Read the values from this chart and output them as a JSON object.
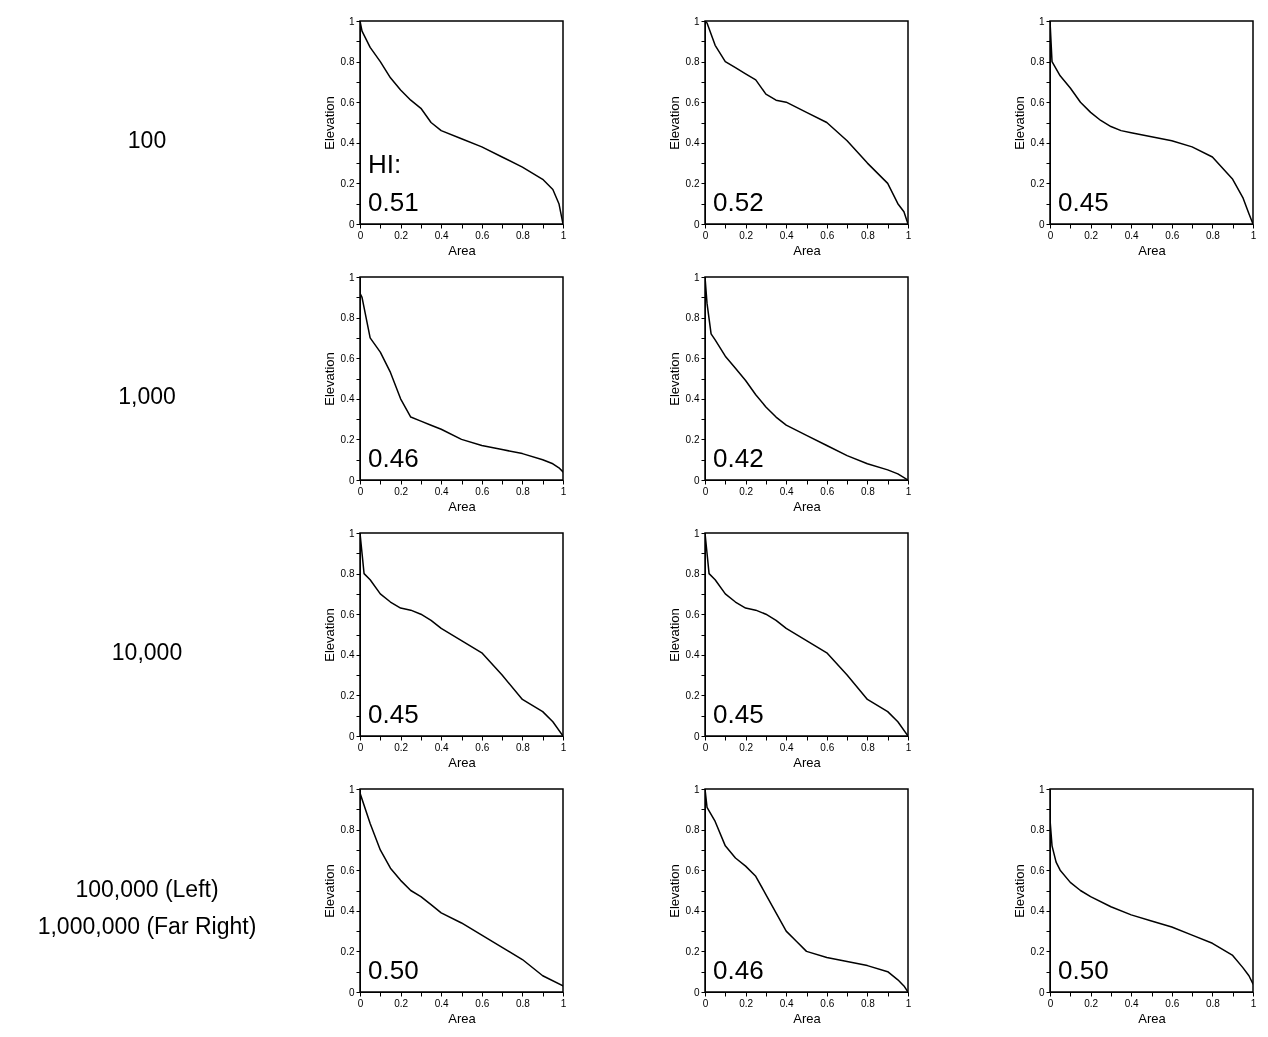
{
  "chart_data": [
    {
      "type": "other",
      "annotations": [
        "100"
      ]
    },
    {
      "type": "line",
      "color": "#000000",
      "xlabel": "Area",
      "ylabel": "Elevation",
      "xlim": [
        0,
        1
      ],
      "ylim": [
        0,
        1
      ],
      "xticks": [
        0,
        {
          "value": 0.1,
          "label": null
        },
        0.2,
        {
          "value": 0.3,
          "label": null
        },
        0.4,
        {
          "value": 0.5,
          "label": null
        },
        0.6,
        {
          "value": 0.7,
          "label": null
        },
        0.8,
        {
          "value": 0.9,
          "label": null
        },
        1
      ],
      "yticks": [
        0,
        {
          "value": 0.1,
          "label": null
        },
        0.2,
        {
          "value": 0.3,
          "label": null
        },
        0.4,
        {
          "value": 0.5,
          "label": null
        },
        0.6,
        {
          "value": 0.7,
          "label": null
        },
        0.8,
        {
          "value": 0.9,
          "label": null
        },
        1
      ],
      "annotations": [
        "HI:",
        "0.51"
      ],
      "x": [
        0,
        0.01,
        0.05,
        0.1,
        0.15,
        0.2,
        0.25,
        0.3,
        0.35,
        0.4,
        0.5,
        0.6,
        0.7,
        0.8,
        0.9,
        0.95,
        0.98,
        1
      ],
      "values": [
        1,
        0.95,
        0.87,
        0.8,
        0.72,
        0.66,
        0.61,
        0.57,
        0.5,
        0.46,
        0.42,
        0.38,
        0.33,
        0.28,
        0.22,
        0.17,
        0.1,
        0
      ]
    },
    {
      "type": "line",
      "color": "#000000",
      "xlabel": "Area",
      "ylabel": "Elevation",
      "xlim": [
        0,
        1
      ],
      "ylim": [
        0,
        1
      ],
      "xticks": [
        0,
        {
          "value": 0.1,
          "label": null
        },
        0.2,
        {
          "value": 0.3,
          "label": null
        },
        0.4,
        {
          "value": 0.5,
          "label": null
        },
        0.6,
        {
          "value": 0.7,
          "label": null
        },
        0.8,
        {
          "value": 0.9,
          "label": null
        },
        1
      ],
      "yticks": [
        0,
        {
          "value": 0.1,
          "label": null
        },
        0.2,
        {
          "value": 0.3,
          "label": null
        },
        0.4,
        {
          "value": 0.5,
          "label": null
        },
        0.6,
        {
          "value": 0.7,
          "label": null
        },
        0.8,
        {
          "value": 0.9,
          "label": null
        },
        1
      ],
      "annotations": [
        "0.52"
      ],
      "x": [
        0,
        0.01,
        0.05,
        0.1,
        0.15,
        0.2,
        0.25,
        0.3,
        0.35,
        0.4,
        0.5,
        0.6,
        0.7,
        0.8,
        0.9,
        0.95,
        0.98,
        1
      ],
      "values": [
        1,
        0.99,
        0.88,
        0.8,
        0.77,
        0.74,
        0.71,
        0.64,
        0.61,
        0.6,
        0.55,
        0.5,
        0.41,
        0.3,
        0.2,
        0.1,
        0.06,
        0
      ]
    },
    {
      "type": "line",
      "color": "#000000",
      "xlabel": "Area",
      "ylabel": "Elevation",
      "xlim": [
        0,
        1
      ],
      "ylim": [
        0,
        1
      ],
      "xticks": [
        0,
        {
          "value": 0.1,
          "label": null
        },
        0.2,
        {
          "value": 0.3,
          "label": null
        },
        0.4,
        {
          "value": 0.5,
          "label": null
        },
        0.6,
        {
          "value": 0.7,
          "label": null
        },
        0.8,
        {
          "value": 0.9,
          "label": null
        },
        1
      ],
      "yticks": [
        0,
        {
          "value": 0.1,
          "label": null
        },
        0.2,
        {
          "value": 0.3,
          "label": null
        },
        0.4,
        {
          "value": 0.5,
          "label": null
        },
        0.6,
        {
          "value": 0.7,
          "label": null
        },
        0.8,
        {
          "value": 0.9,
          "label": null
        },
        1
      ],
      "annotations": [
        "0.45"
      ],
      "x": [
        0,
        0.01,
        0.05,
        0.1,
        0.15,
        0.2,
        0.25,
        0.3,
        0.35,
        0.4,
        0.5,
        0.6,
        0.7,
        0.8,
        0.9,
        0.95,
        0.98,
        1
      ],
      "values": [
        1,
        0.8,
        0.73,
        0.67,
        0.6,
        0.55,
        0.51,
        0.48,
        0.46,
        0.45,
        0.43,
        0.41,
        0.38,
        0.33,
        0.22,
        0.13,
        0.05,
        0
      ]
    },
    {
      "type": "other",
      "annotations": [
        "1,000"
      ]
    },
    {
      "type": "line",
      "color": "#000000",
      "xlabel": "Area",
      "ylabel": "Elevation",
      "xlim": [
        0,
        1
      ],
      "ylim": [
        0,
        1
      ],
      "xticks": [
        0,
        {
          "value": 0.1,
          "label": null
        },
        0.2,
        {
          "value": 0.3,
          "label": null
        },
        0.4,
        {
          "value": 0.5,
          "label": null
        },
        0.6,
        {
          "value": 0.7,
          "label": null
        },
        0.8,
        {
          "value": 0.9,
          "label": null
        },
        1
      ],
      "yticks": [
        0,
        {
          "value": 0.1,
          "label": null
        },
        0.2,
        {
          "value": 0.3,
          "label": null
        },
        0.4,
        {
          "value": 0.5,
          "label": null
        },
        0.6,
        {
          "value": 0.7,
          "label": null
        },
        0.8,
        {
          "value": 0.9,
          "label": null
        },
        1
      ],
      "annotations": [
        "0.46"
      ],
      "x": [
        0,
        0.01,
        0.05,
        0.1,
        0.15,
        0.2,
        0.25,
        0.3,
        0.35,
        0.4,
        0.5,
        0.6,
        0.7,
        0.8,
        0.9,
        0.95,
        0.98,
        1
      ],
      "values": [
        0.92,
        0.9,
        0.7,
        0.63,
        0.53,
        0.4,
        0.31,
        0.29,
        0.27,
        0.25,
        0.2,
        0.17,
        0.15,
        0.13,
        0.1,
        0.08,
        0.06,
        0.04
      ]
    },
    {
      "type": "line",
      "color": "#000000",
      "xlabel": "Area",
      "ylabel": "Elevation",
      "xlim": [
        0,
        1
      ],
      "ylim": [
        0,
        1
      ],
      "xticks": [
        0,
        {
          "value": 0.1,
          "label": null
        },
        0.2,
        {
          "value": 0.3,
          "label": null
        },
        0.4,
        {
          "value": 0.5,
          "label": null
        },
        0.6,
        {
          "value": 0.7,
          "label": null
        },
        0.8,
        {
          "value": 0.9,
          "label": null
        },
        1
      ],
      "yticks": [
        0,
        {
          "value": 0.1,
          "label": null
        },
        0.2,
        {
          "value": 0.3,
          "label": null
        },
        0.4,
        {
          "value": 0.5,
          "label": null
        },
        0.6,
        {
          "value": 0.7,
          "label": null
        },
        0.8,
        {
          "value": 0.9,
          "label": null
        },
        1
      ],
      "annotations": [
        "0.42"
      ],
      "x": [
        0,
        0.01,
        0.03,
        0.05,
        0.1,
        0.15,
        0.2,
        0.25,
        0.3,
        0.35,
        0.4,
        0.5,
        0.6,
        0.7,
        0.8,
        0.9,
        0.95,
        1
      ],
      "values": [
        1,
        0.87,
        0.72,
        0.69,
        0.61,
        0.55,
        0.49,
        0.42,
        0.36,
        0.31,
        0.27,
        0.22,
        0.17,
        0.12,
        0.08,
        0.05,
        0.03,
        0
      ]
    },
    {
      "type": "other",
      "annotations": [
        "10,000"
      ]
    },
    {
      "type": "line",
      "color": "#000000",
      "xlabel": "Area",
      "ylabel": "Elevation",
      "xlim": [
        0,
        1
      ],
      "ylim": [
        0,
        1
      ],
      "xticks": [
        0,
        {
          "value": 0.1,
          "label": null
        },
        0.2,
        {
          "value": 0.3,
          "label": null
        },
        0.4,
        {
          "value": 0.5,
          "label": null
        },
        0.6,
        {
          "value": 0.7,
          "label": null
        },
        0.8,
        {
          "value": 0.9,
          "label": null
        },
        1
      ],
      "yticks": [
        0,
        {
          "value": 0.1,
          "label": null
        },
        0.2,
        {
          "value": 0.3,
          "label": null
        },
        0.4,
        {
          "value": 0.5,
          "label": null
        },
        0.6,
        {
          "value": 0.7,
          "label": null
        },
        0.8,
        {
          "value": 0.9,
          "label": null
        },
        1
      ],
      "annotations": [
        "0.45"
      ],
      "x": [
        0,
        0.01,
        0.02,
        0.05,
        0.1,
        0.15,
        0.2,
        0.25,
        0.3,
        0.35,
        0.4,
        0.5,
        0.6,
        0.7,
        0.8,
        0.9,
        0.95,
        1
      ],
      "values": [
        1,
        0.9,
        0.8,
        0.77,
        0.7,
        0.66,
        0.63,
        0.62,
        0.6,
        0.57,
        0.53,
        0.47,
        0.41,
        0.3,
        0.18,
        0.12,
        0.07,
        0
      ]
    },
    {
      "type": "line",
      "color": "#000000",
      "xlabel": "Area",
      "ylabel": "Elevation",
      "xlim": [
        0,
        1
      ],
      "ylim": [
        0,
        1
      ],
      "xticks": [
        0,
        {
          "value": 0.1,
          "label": null
        },
        0.2,
        {
          "value": 0.3,
          "label": null
        },
        0.4,
        {
          "value": 0.5,
          "label": null
        },
        0.6,
        {
          "value": 0.7,
          "label": null
        },
        0.8,
        {
          "value": 0.9,
          "label": null
        },
        1
      ],
      "yticks": [
        0,
        {
          "value": 0.1,
          "label": null
        },
        0.2,
        {
          "value": 0.3,
          "label": null
        },
        0.4,
        {
          "value": 0.5,
          "label": null
        },
        0.6,
        {
          "value": 0.7,
          "label": null
        },
        0.8,
        {
          "value": 0.9,
          "label": null
        },
        1
      ],
      "annotations": [
        "0.45"
      ],
      "x": [
        0,
        0.01,
        0.02,
        0.05,
        0.1,
        0.15,
        0.2,
        0.25,
        0.3,
        0.35,
        0.4,
        0.5,
        0.6,
        0.7,
        0.8,
        0.9,
        0.95,
        1
      ],
      "values": [
        1,
        0.9,
        0.8,
        0.77,
        0.7,
        0.66,
        0.63,
        0.62,
        0.6,
        0.57,
        0.53,
        0.47,
        0.41,
        0.3,
        0.18,
        0.12,
        0.07,
        0
      ]
    },
    {
      "type": "other",
      "annotations": [
        "100,000 (Left)",
        "1,000,000 (Far Right)"
      ]
    },
    {
      "type": "line",
      "color": "#000000",
      "xlabel": "Area",
      "ylabel": "Elevation",
      "xlim": [
        0,
        1
      ],
      "ylim": [
        0,
        1
      ],
      "xticks": [
        0,
        {
          "value": 0.1,
          "label": null
        },
        0.2,
        {
          "value": 0.3,
          "label": null
        },
        0.4,
        {
          "value": 0.5,
          "label": null
        },
        0.6,
        {
          "value": 0.7,
          "label": null
        },
        0.8,
        {
          "value": 0.9,
          "label": null
        },
        1
      ],
      "yticks": [
        0,
        {
          "value": 0.1,
          "label": null
        },
        0.2,
        {
          "value": 0.3,
          "label": null
        },
        0.4,
        {
          "value": 0.5,
          "label": null
        },
        0.6,
        {
          "value": 0.7,
          "label": null
        },
        0.8,
        {
          "value": 0.9,
          "label": null
        },
        1
      ],
      "annotations": [
        "0.50"
      ],
      "x": [
        0,
        0.05,
        0.1,
        0.15,
        0.2,
        0.25,
        0.3,
        0.35,
        0.4,
        0.5,
        0.6,
        0.7,
        0.8,
        0.9,
        1
      ],
      "values": [
        0.98,
        0.83,
        0.7,
        0.61,
        0.55,
        0.5,
        0.47,
        0.43,
        0.39,
        0.34,
        0.28,
        0.22,
        0.16,
        0.08,
        0.03
      ]
    },
    {
      "type": "line",
      "color": "#000000",
      "xlabel": "Area",
      "ylabel": "Elevation",
      "xlim": [
        0,
        1
      ],
      "ylim": [
        0,
        1
      ],
      "xticks": [
        0,
        {
          "value": 0.1,
          "label": null
        },
        0.2,
        {
          "value": 0.3,
          "label": null
        },
        0.4,
        {
          "value": 0.5,
          "label": null
        },
        0.6,
        {
          "value": 0.7,
          "label": null
        },
        0.8,
        {
          "value": 0.9,
          "label": null
        },
        1
      ],
      "yticks": [
        0,
        {
          "value": 0.1,
          "label": null
        },
        0.2,
        {
          "value": 0.3,
          "label": null
        },
        0.4,
        {
          "value": 0.5,
          "label": null
        },
        0.6,
        {
          "value": 0.7,
          "label": null
        },
        0.8,
        {
          "value": 0.9,
          "label": null
        },
        1
      ],
      "annotations": [
        "0.46"
      ],
      "x": [
        0,
        0.01,
        0.05,
        0.1,
        0.15,
        0.2,
        0.25,
        0.3,
        0.35,
        0.4,
        0.45,
        0.5,
        0.6,
        0.7,
        0.8,
        0.9,
        0.95,
        0.98,
        1
      ],
      "values": [
        1,
        0.91,
        0.84,
        0.72,
        0.66,
        0.62,
        0.57,
        0.48,
        0.39,
        0.3,
        0.25,
        0.2,
        0.17,
        0.15,
        0.13,
        0.1,
        0.06,
        0.03,
        0
      ]
    },
    {
      "type": "line",
      "color": "#000000",
      "xlabel": "Area",
      "ylabel": "Elevation",
      "xlim": [
        0,
        1
      ],
      "ylim": [
        0,
        1
      ],
      "xticks": [
        0,
        {
          "value": 0.1,
          "label": null
        },
        0.2,
        {
          "value": 0.3,
          "label": null
        },
        0.4,
        {
          "value": 0.5,
          "label": null
        },
        0.6,
        {
          "value": 0.7,
          "label": null
        },
        0.8,
        {
          "value": 0.9,
          "label": null
        },
        1
      ],
      "yticks": [
        0,
        {
          "value": 0.1,
          "label": null
        },
        0.2,
        {
          "value": 0.3,
          "label": null
        },
        0.4,
        {
          "value": 0.5,
          "label": null
        },
        0.6,
        {
          "value": 0.7,
          "label": null
        },
        0.8,
        {
          "value": 0.9,
          "label": null
        },
        1
      ],
      "annotations": [
        "0.50"
      ],
      "x": [
        0,
        0.01,
        0.03,
        0.05,
        0.1,
        0.15,
        0.2,
        0.3,
        0.4,
        0.5,
        0.6,
        0.7,
        0.8,
        0.9,
        0.95,
        0.98,
        1
      ],
      "values": [
        0.85,
        0.72,
        0.64,
        0.6,
        0.54,
        0.5,
        0.47,
        0.42,
        0.38,
        0.35,
        0.32,
        0.28,
        0.24,
        0.18,
        0.12,
        0.08,
        0.04
      ]
    }
  ]
}
